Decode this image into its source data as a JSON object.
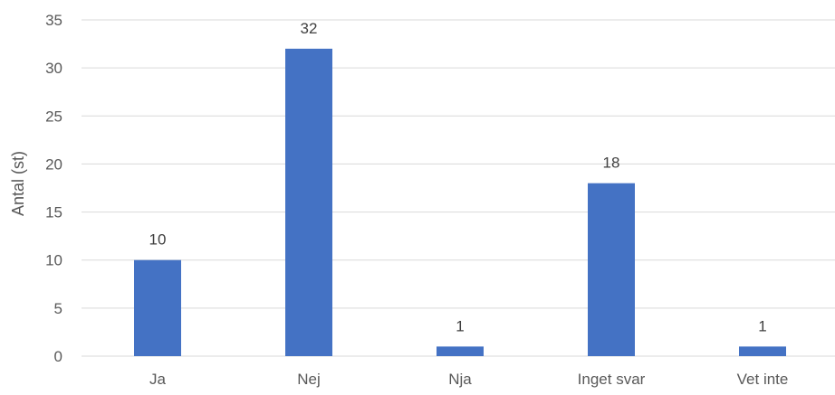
{
  "chart_data": {
    "type": "bar",
    "title": "",
    "xlabel": "",
    "ylabel": "Antal (st)",
    "categories": [
      "Ja",
      "Nej",
      "Nja",
      "Inget svar",
      "Vet inte"
    ],
    "values": [
      10,
      32,
      1,
      18,
      1
    ],
    "ylim": [
      0,
      35
    ],
    "yticks": [
      0,
      5,
      10,
      15,
      20,
      25,
      30,
      35
    ],
    "grid": true,
    "legend": "none",
    "colors": {
      "bar": "#4472c4"
    }
  }
}
